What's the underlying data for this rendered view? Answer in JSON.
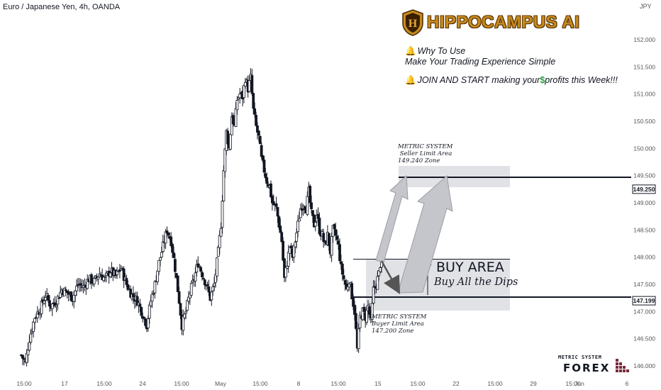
{
  "header": {
    "title": "Euro / Japanese Yen, 4h, OANDA",
    "currency": "JPY"
  },
  "brand": {
    "name": "HIPPOCAMPUS AI",
    "colors": {
      "gold": "#c78a1e",
      "dark": "#4a2a00"
    }
  },
  "promo": {
    "line1": "Why To Use",
    "line2": "Make Your Trading Experience Simple",
    "line3_a": "JOIN AND START making your",
    "line3_b": "profits this Week!!!",
    "bell_icon": "bell-icon",
    "dollar_icon": "dollar-icon"
  },
  "annotations": {
    "seller": {
      "l1": "METRIC SYSTEM",
      "l2": " Seller Limit Area",
      "l3": "149.240 Zone"
    },
    "buyer": {
      "l1": "METRIC SYSTEM",
      "l2": "Buyer Limit Area",
      "l3": "147.200 Zone"
    },
    "buy_area_title": "BUY AREA",
    "buy_area_sub": "Buy All the Dips"
  },
  "watermark": {
    "top": "METRIC SYSTEM",
    "bottom": "FOREX"
  },
  "chart_data": {
    "type": "candlestick",
    "symbol": "Euro / Japanese Yen",
    "interval": "4h",
    "y_axis": {
      "ticks": [
        146.0,
        146.5,
        147.0,
        147.5,
        148.0,
        148.5,
        149.0,
        149.5,
        150.0,
        150.5,
        151.0,
        151.5,
        152.0
      ],
      "tick_labels": [
        "146.000",
        "146.500",
        "147.000",
        "147.500",
        "148.000",
        "148.500",
        "149.000",
        "149.500",
        "150.000",
        "150.500",
        "151.000",
        "151.500",
        "152.000"
      ]
    },
    "x_axis": {
      "tick_labels": [
        "15:00",
        "17",
        "15:00",
        "24",
        "15:00",
        "May",
        "15:00",
        "8",
        "15:00",
        "15",
        "15:00",
        "22",
        "15:00",
        "29",
        "15:00",
        "Jun",
        "6"
      ]
    },
    "price_labels": [
      {
        "value": "149.250",
        "price": 149.25
      },
      {
        "value": "147.199",
        "price": 147.199
      }
    ],
    "levels": {
      "seller_limit": 149.25,
      "buyer_limit": 147.199,
      "buy_area_top": 147.86
    },
    "path_points": [
      [
        0,
        146.2
      ],
      [
        6,
        146.05
      ],
      [
        12,
        146.5
      ],
      [
        20,
        146.9
      ],
      [
        28,
        147.05
      ],
      [
        36,
        147.3
      ],
      [
        44,
        147.1
      ],
      [
        52,
        147.2
      ],
      [
        60,
        147.4
      ],
      [
        68,
        147.35
      ],
      [
        76,
        147.25
      ],
      [
        84,
        147.5
      ],
      [
        92,
        147.45
      ],
      [
        100,
        147.6
      ],
      [
        108,
        147.55
      ],
      [
        116,
        147.7
      ],
      [
        124,
        147.6
      ],
      [
        132,
        147.75
      ],
      [
        140,
        147.65
      ],
      [
        148,
        147.8
      ],
      [
        156,
        147.5
      ],
      [
        164,
        147.3
      ],
      [
        172,
        147.2
      ],
      [
        180,
        146.95
      ],
      [
        186,
        146.75
      ],
      [
        192,
        147.2
      ],
      [
        198,
        147.5
      ],
      [
        204,
        147.9
      ],
      [
        210,
        148.2
      ],
      [
        216,
        148.5
      ],
      [
        222,
        148.3
      ],
      [
        228,
        147.8
      ],
      [
        234,
        147.2
      ],
      [
        238,
        146.75
      ],
      [
        244,
        147.0
      ],
      [
        250,
        147.35
      ],
      [
        256,
        147.6
      ],
      [
        262,
        147.9
      ],
      [
        268,
        147.7
      ],
      [
        274,
        147.5
      ],
      [
        280,
        147.25
      ],
      [
        286,
        147.5
      ],
      [
        292,
        148.1
      ],
      [
        296,
        148.6
      ],
      [
        300,
        149.6
      ],
      [
        304,
        150.3
      ],
      [
        308,
        150.0
      ],
      [
        312,
        150.6
      ],
      [
        316,
        150.4
      ],
      [
        320,
        150.9
      ],
      [
        324,
        151.0
      ],
      [
        328,
        150.95
      ],
      [
        332,
        151.3
      ],
      [
        336,
        151.1
      ],
      [
        340,
        151.3
      ],
      [
        344,
        150.7
      ],
      [
        348,
        150.4
      ],
      [
        352,
        150.2
      ],
      [
        356,
        149.8
      ],
      [
        360,
        149.6
      ],
      [
        364,
        149.4
      ],
      [
        368,
        149.3
      ],
      [
        372,
        149.0
      ],
      [
        378,
        148.9
      ],
      [
        382,
        148.6
      ],
      [
        386,
        148.3
      ],
      [
        390,
        147.6
      ],
      [
        394,
        147.9
      ],
      [
        398,
        148.2
      ],
      [
        402,
        148.0
      ],
      [
        406,
        148.3
      ],
      [
        410,
        148.6
      ],
      [
        414,
        148.9
      ],
      [
        418,
        149.0
      ],
      [
        422,
        148.9
      ],
      [
        426,
        149.2
      ],
      [
        430,
        148.8
      ],
      [
        434,
        148.6
      ],
      [
        438,
        148.8
      ],
      [
        442,
        148.5
      ],
      [
        446,
        148.4
      ],
      [
        450,
        148.2
      ],
      [
        454,
        148.4
      ],
      [
        458,
        148.1
      ],
      [
        462,
        148.5
      ],
      [
        466,
        148.4
      ],
      [
        470,
        148.2
      ],
      [
        474,
        147.8
      ],
      [
        478,
        147.6
      ],
      [
        482,
        147.4
      ],
      [
        486,
        147.6
      ],
      [
        490,
        147.3
      ],
      [
        494,
        147.0
      ],
      [
        498,
        146.3
      ],
      [
        502,
        146.9
      ],
      [
        506,
        147.0
      ],
      [
        510,
        146.9
      ],
      [
        514,
        147.1
      ],
      [
        518,
        146.8
      ],
      [
        522,
        147.4
      ],
      [
        526,
        147.5
      ],
      [
        530,
        147.7
      ],
      [
        534,
        148.05
      ]
    ]
  }
}
